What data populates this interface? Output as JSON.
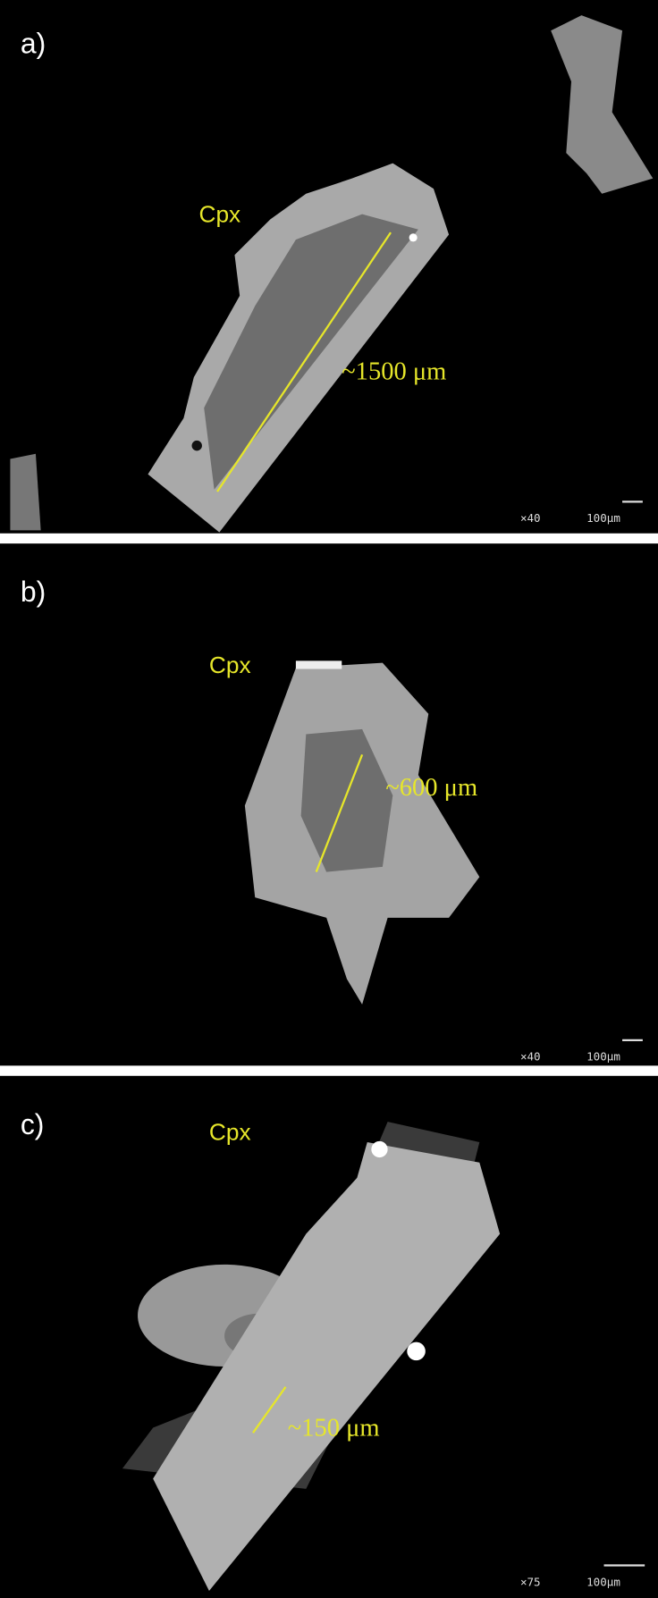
{
  "panels": [
    {
      "label": "a)",
      "mineral": "Cpx",
      "measurement": "~1500 μm",
      "magnification": "×40",
      "scale_bar": "100μm"
    },
    {
      "label": "b)",
      "mineral": "Cpx",
      "measurement": "~600 μm",
      "magnification": "×40",
      "scale_bar": "100μm"
    },
    {
      "label": "c)",
      "mineral": "Cpx",
      "measurement": "~150 μm",
      "magnification": "×75",
      "scale_bar": "100μm"
    }
  ]
}
